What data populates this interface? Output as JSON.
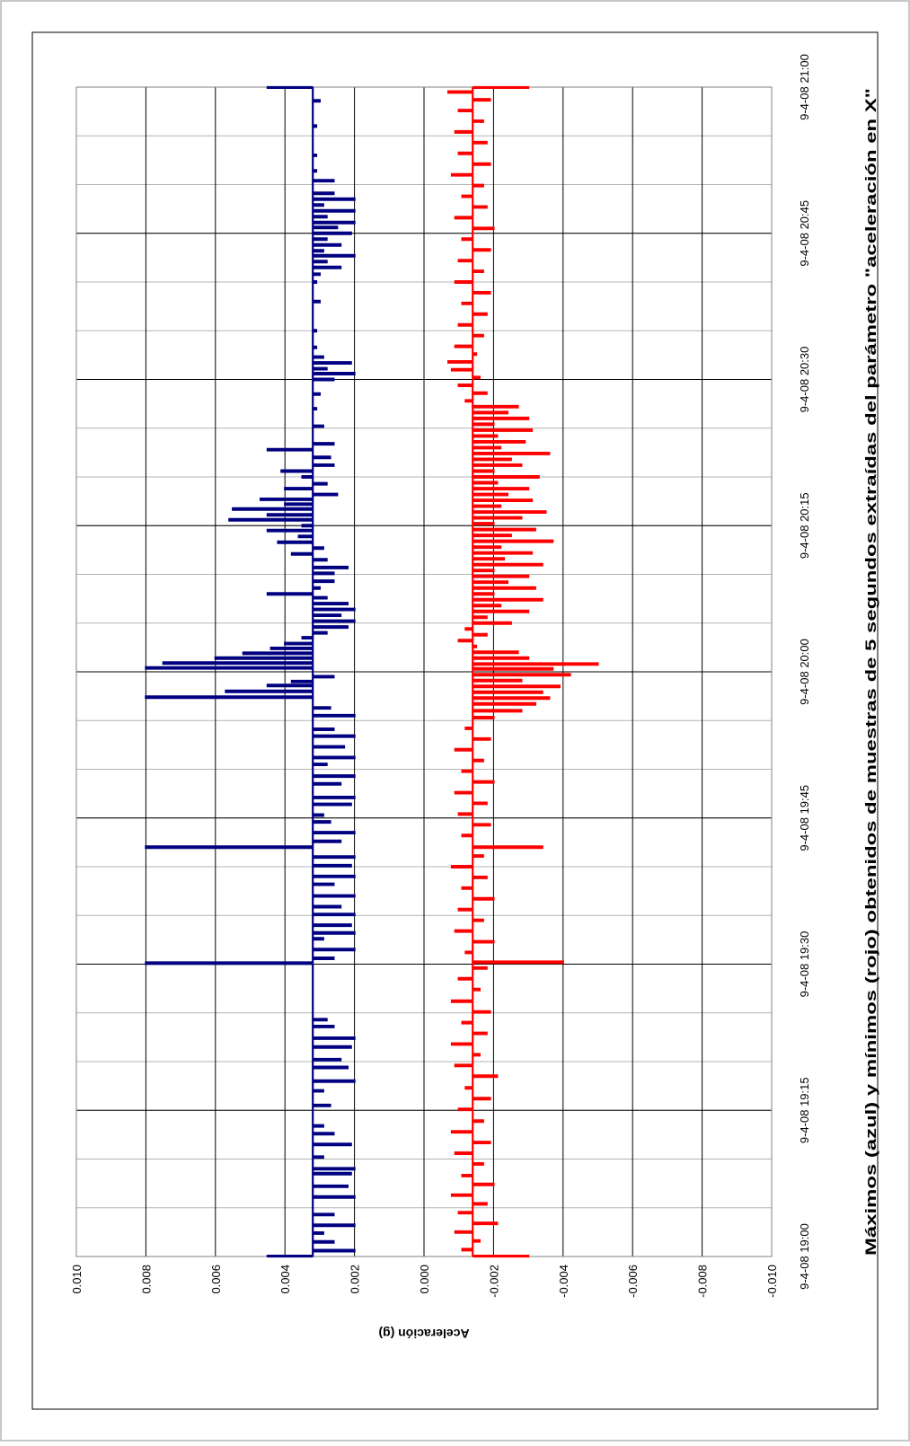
{
  "chart_data": {
    "type": "line",
    "orientation": "rotated-90-clockwise",
    "title": "Máximos (azul) y mínimos (rojo) obtenidos de muestras de 5 segundos extraídas del parámetro \"aceleración en X\"",
    "ylabel": "Aceleración (g)",
    "xlabel": "",
    "ylim": [
      -0.01,
      0.01
    ],
    "yticks": [
      "0.010",
      "0.008",
      "0.006",
      "0.004",
      "0.002",
      "0.000",
      "-0.002",
      "-0.004",
      "-0.006",
      "-0.008",
      "-0.010"
    ],
    "x_range_minutes": [
      0,
      120
    ],
    "xticks": [
      {
        "label": "9-4-08 19:00",
        "minute": 0
      },
      {
        "label": "9-4-08 19:15",
        "minute": 15
      },
      {
        "label": "9-4-08 19:30",
        "minute": 30
      },
      {
        "label": "9-4-08 19:45",
        "minute": 45
      },
      {
        "label": "9-4-08 20:00",
        "minute": 60
      },
      {
        "label": "9-4-08 20:15",
        "minute": 75
      },
      {
        "label": "9-4-08 20:30",
        "minute": 90
      },
      {
        "label": "9-4-08 20:45",
        "minute": 105
      },
      {
        "label": "9-4-08 21:00",
        "minute": 120
      }
    ],
    "minor_grid_minutes": 5,
    "grid": true,
    "legend": "none",
    "series": [
      {
        "color": "#000080",
        "baseline": 0.0032,
        "spikes": [
          [
            0.0,
            0.0045
          ],
          [
            0.6,
            0.002
          ],
          [
            1.5,
            0.0026
          ],
          [
            2.4,
            0.0029
          ],
          [
            3.2,
            0.002
          ],
          [
            4.3,
            0.0026
          ],
          [
            6.1,
            0.002
          ],
          [
            7.2,
            0.0022
          ],
          [
            8.5,
            0.0021
          ],
          [
            9.0,
            0.002
          ],
          [
            10.2,
            0.0029
          ],
          [
            11.5,
            0.0021
          ],
          [
            12.6,
            0.0026
          ],
          [
            13.4,
            0.0029
          ],
          [
            15.5,
            0.0027
          ],
          [
            17.0,
            0.0029
          ],
          [
            18.0,
            0.002
          ],
          [
            19.4,
            0.0022
          ],
          [
            20.2,
            0.0024
          ],
          [
            21.5,
            0.0021
          ],
          [
            22.4,
            0.002
          ],
          [
            23.6,
            0.0026
          ],
          [
            24.3,
            0.0028
          ],
          [
            30.1,
            0.008
          ],
          [
            30.6,
            0.0026
          ],
          [
            31.5,
            0.002
          ],
          [
            32.6,
            0.0029
          ],
          [
            33.2,
            0.002
          ],
          [
            34.0,
            0.0021
          ],
          [
            35.1,
            0.002
          ],
          [
            35.9,
            0.0024
          ],
          [
            37.0,
            0.002
          ],
          [
            38.2,
            0.0026
          ],
          [
            39.0,
            0.002
          ],
          [
            40.1,
            0.0021
          ],
          [
            41.0,
            0.002
          ],
          [
            42.0,
            0.008
          ],
          [
            42.6,
            0.0024
          ],
          [
            43.5,
            0.002
          ],
          [
            44.6,
            0.0027
          ],
          [
            45.3,
            0.0029
          ],
          [
            46.4,
            0.0021
          ],
          [
            47.1,
            0.002
          ],
          [
            48.5,
            0.0024
          ],
          [
            49.3,
            0.002
          ],
          [
            50.5,
            0.0028
          ],
          [
            51.2,
            0.002
          ],
          [
            52.3,
            0.0023
          ],
          [
            53.4,
            0.002
          ],
          [
            54.1,
            0.0026
          ],
          [
            55.5,
            0.002
          ],
          [
            56.3,
            0.0027
          ],
          [
            57.4,
            0.008
          ],
          [
            58.0,
            0.0057
          ],
          [
            58.6,
            0.0045
          ],
          [
            59.0,
            0.0038
          ],
          [
            59.5,
            0.0026
          ],
          [
            60.4,
            0.008
          ],
          [
            60.9,
            0.0075
          ],
          [
            61.4,
            0.006
          ],
          [
            61.9,
            0.0052
          ],
          [
            62.4,
            0.0044
          ],
          [
            62.9,
            0.004
          ],
          [
            63.5,
            0.0035
          ],
          [
            64.0,
            0.0028
          ],
          [
            64.6,
            0.0022
          ],
          [
            65.2,
            0.002
          ],
          [
            65.8,
            0.0024
          ],
          [
            66.4,
            0.002
          ],
          [
            67.0,
            0.0022
          ],
          [
            67.6,
            0.0028
          ],
          [
            68.0,
            0.0045
          ],
          [
            68.6,
            0.003
          ],
          [
            69.3,
            0.0026
          ],
          [
            70.1,
            0.0026
          ],
          [
            70.7,
            0.0022
          ],
          [
            71.5,
            0.0028
          ],
          [
            72.1,
            0.0038
          ],
          [
            72.7,
            0.0029
          ],
          [
            73.3,
            0.0042
          ],
          [
            73.9,
            0.0036
          ],
          [
            74.5,
            0.0045
          ],
          [
            75.0,
            0.0035
          ],
          [
            75.6,
            0.0056
          ],
          [
            76.1,
            0.0045
          ],
          [
            76.7,
            0.0055
          ],
          [
            77.2,
            0.004
          ],
          [
            77.7,
            0.0047
          ],
          [
            78.2,
            0.0025
          ],
          [
            78.8,
            0.004
          ],
          [
            79.3,
            0.0028
          ],
          [
            80.0,
            0.0035
          ],
          [
            80.6,
            0.0041
          ],
          [
            81.2,
            0.0026
          ],
          [
            82.0,
            0.0027
          ],
          [
            82.8,
            0.0045
          ],
          [
            83.4,
            0.0026
          ],
          [
            85.2,
            0.0029
          ],
          [
            87.0,
            0.0031
          ],
          [
            88.5,
            0.003
          ],
          [
            90.0,
            0.0026
          ],
          [
            90.6,
            0.002
          ],
          [
            91.1,
            0.0028
          ],
          [
            91.7,
            0.0021
          ],
          [
            92.3,
            0.0029
          ],
          [
            93.3,
            0.0031
          ],
          [
            95.0,
            0.0031
          ],
          [
            98.0,
            0.003
          ],
          [
            100.0,
            0.0031
          ],
          [
            100.8,
            0.003
          ],
          [
            101.5,
            0.0024
          ],
          [
            102.1,
            0.0028
          ],
          [
            102.7,
            0.002
          ],
          [
            103.2,
            0.0029
          ],
          [
            103.8,
            0.0024
          ],
          [
            104.4,
            0.0028
          ],
          [
            105.0,
            0.0021
          ],
          [
            105.6,
            0.0025
          ],
          [
            106.1,
            0.002
          ],
          [
            106.7,
            0.0028
          ],
          [
            107.3,
            0.002
          ],
          [
            107.9,
            0.0029
          ],
          [
            108.5,
            0.002
          ],
          [
            109.1,
            0.0026
          ],
          [
            110.4,
            0.0026
          ],
          [
            111.4,
            0.0031
          ],
          [
            113.0,
            0.0031
          ],
          [
            116.0,
            0.0031
          ],
          [
            118.6,
            0.003
          ],
          [
            120.0,
            0.0045
          ]
        ]
      },
      {
        "color": "#ff0000",
        "baseline": -0.0014,
        "spikes": [
          [
            0.0,
            -0.003
          ],
          [
            0.7,
            -0.0011
          ],
          [
            1.6,
            -0.0016
          ],
          [
            2.5,
            -0.0009
          ],
          [
            3.4,
            -0.0021
          ],
          [
            4.5,
            -0.001
          ],
          [
            5.4,
            -0.0018
          ],
          [
            6.3,
            -0.0008
          ],
          [
            7.4,
            -0.002
          ],
          [
            8.3,
            -0.0011
          ],
          [
            9.5,
            -0.0017
          ],
          [
            10.6,
            -0.0009
          ],
          [
            11.7,
            -0.0019
          ],
          [
            12.8,
            -0.0008
          ],
          [
            13.9,
            -0.0017
          ],
          [
            15.1,
            -0.001
          ],
          [
            16.2,
            -0.0019
          ],
          [
            17.3,
            -0.0012
          ],
          [
            18.5,
            -0.0021
          ],
          [
            19.6,
            -0.0009
          ],
          [
            20.7,
            -0.0016
          ],
          [
            21.8,
            -0.0008
          ],
          [
            22.9,
            -0.0018
          ],
          [
            24.0,
            -0.0011
          ],
          [
            25.1,
            -0.0019
          ],
          [
            26.2,
            -0.0008
          ],
          [
            27.4,
            -0.0016
          ],
          [
            28.5,
            -0.001
          ],
          [
            29.6,
            -0.0018
          ],
          [
            30.2,
            -0.004
          ],
          [
            31.2,
            -0.0012
          ],
          [
            32.3,
            -0.002
          ],
          [
            33.4,
            -0.0009
          ],
          [
            34.5,
            -0.0017
          ],
          [
            35.6,
            -0.001
          ],
          [
            36.7,
            -0.002
          ],
          [
            37.8,
            -0.0011
          ],
          [
            38.9,
            -0.0018
          ],
          [
            40.0,
            -0.0008
          ],
          [
            41.1,
            -0.0017
          ],
          [
            42.0,
            -0.0034
          ],
          [
            43.2,
            -0.0011
          ],
          [
            44.3,
            -0.0019
          ],
          [
            45.4,
            -0.001
          ],
          [
            46.5,
            -0.0018
          ],
          [
            47.6,
            -0.0009
          ],
          [
            48.7,
            -0.002
          ],
          [
            49.8,
            -0.0011
          ],
          [
            50.9,
            -0.0017
          ],
          [
            52.0,
            -0.0009
          ],
          [
            53.1,
            -0.0019
          ],
          [
            54.2,
            -0.0012
          ],
          [
            55.3,
            -0.002
          ],
          [
            56.0,
            -0.0028
          ],
          [
            56.7,
            -0.0032
          ],
          [
            57.3,
            -0.0036
          ],
          [
            57.9,
            -0.0034
          ],
          [
            58.5,
            -0.0039
          ],
          [
            59.1,
            -0.0028
          ],
          [
            59.7,
            -0.0042
          ],
          [
            60.3,
            -0.0037
          ],
          [
            60.8,
            -0.005
          ],
          [
            61.4,
            -0.003
          ],
          [
            62.0,
            -0.0027
          ],
          [
            62.6,
            -0.0015
          ],
          [
            63.2,
            -0.001
          ],
          [
            63.8,
            -0.0018
          ],
          [
            64.4,
            -0.0012
          ],
          [
            65.0,
            -0.0025
          ],
          [
            65.6,
            -0.0018
          ],
          [
            66.2,
            -0.003
          ],
          [
            66.8,
            -0.0022
          ],
          [
            67.4,
            -0.0034
          ],
          [
            68.0,
            -0.002
          ],
          [
            68.6,
            -0.0032
          ],
          [
            69.2,
            -0.0024
          ],
          [
            69.8,
            -0.003
          ],
          [
            70.4,
            -0.002
          ],
          [
            71.0,
            -0.0034
          ],
          [
            71.6,
            -0.0023
          ],
          [
            72.2,
            -0.0031
          ],
          [
            72.8,
            -0.0022
          ],
          [
            73.4,
            -0.0037
          ],
          [
            74.0,
            -0.0025
          ],
          [
            74.6,
            -0.0032
          ],
          [
            75.2,
            -0.002
          ],
          [
            75.8,
            -0.0028
          ],
          [
            76.4,
            -0.0035
          ],
          [
            77.0,
            -0.0022
          ],
          [
            77.6,
            -0.0031
          ],
          [
            78.2,
            -0.0024
          ],
          [
            78.8,
            -0.003
          ],
          [
            79.4,
            -0.0021
          ],
          [
            80.0,
            -0.0033
          ],
          [
            80.6,
            -0.002
          ],
          [
            81.2,
            -0.0028
          ],
          [
            81.8,
            -0.0025
          ],
          [
            82.4,
            -0.0036
          ],
          [
            83.0,
            -0.0022
          ],
          [
            83.6,
            -0.0029
          ],
          [
            84.2,
            -0.0021
          ],
          [
            84.8,
            -0.0031
          ],
          [
            85.4,
            -0.002
          ],
          [
            86.0,
            -0.003
          ],
          [
            86.6,
            -0.0024
          ],
          [
            87.2,
            -0.0027
          ],
          [
            87.8,
            -0.0012
          ],
          [
            88.6,
            -0.0018
          ],
          [
            89.4,
            -0.001
          ],
          [
            90.2,
            -0.0016
          ],
          [
            91.0,
            -0.0008
          ],
          [
            91.8,
            -0.0007
          ],
          [
            92.6,
            -0.0015
          ],
          [
            93.4,
            -0.0009
          ],
          [
            94.5,
            -0.0017
          ],
          [
            95.6,
            -0.001
          ],
          [
            96.7,
            -0.0018
          ],
          [
            97.8,
            -0.0011
          ],
          [
            98.9,
            -0.0019
          ],
          [
            100.0,
            -0.0009
          ],
          [
            101.1,
            -0.0017
          ],
          [
            102.2,
            -0.001
          ],
          [
            103.3,
            -0.0019
          ],
          [
            104.4,
            -0.0011
          ],
          [
            105.5,
            -0.002
          ],
          [
            106.6,
            -0.0009
          ],
          [
            107.7,
            -0.0018
          ],
          [
            108.8,
            -0.0011
          ],
          [
            109.9,
            -0.0017
          ],
          [
            111.0,
            -0.0008
          ],
          [
            112.1,
            -0.0019
          ],
          [
            113.2,
            -0.001
          ],
          [
            114.3,
            -0.0018
          ],
          [
            115.4,
            -0.0009
          ],
          [
            116.5,
            -0.0017
          ],
          [
            117.6,
            -0.001
          ],
          [
            118.7,
            -0.0019
          ],
          [
            119.5,
            -0.0007
          ],
          [
            120.0,
            -0.003
          ]
        ]
      }
    ]
  }
}
